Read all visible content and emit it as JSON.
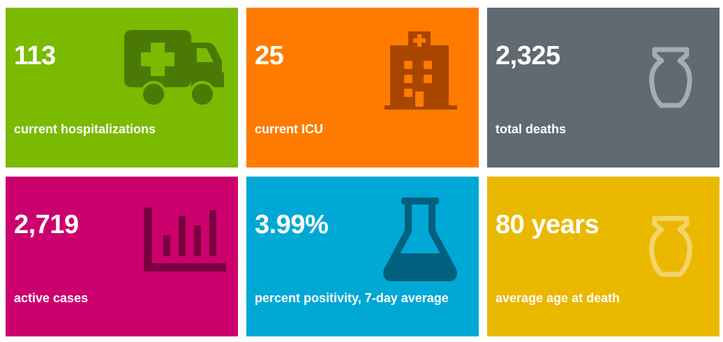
{
  "colors": {
    "hospitalizations": "#7aba00",
    "icu": "#ff7b00",
    "deaths": "#5f6a72",
    "active_cases": "#cc006d",
    "positivity": "#00a8d6",
    "age": "#ebb800"
  },
  "tiles": [
    {
      "value": "113",
      "label": "current hospitalizations",
      "icon": "ambulance-icon"
    },
    {
      "value": "25",
      "label": "current ICU",
      "icon": "hospital-icon"
    },
    {
      "value": "2,325",
      "label": "total deaths",
      "icon": "urn-icon"
    },
    {
      "value": "2,719",
      "label": "active cases",
      "icon": "bar-chart-icon"
    },
    {
      "value": "3.99%",
      "label": "percent positivity, 7-day average",
      "icon": "flask-icon"
    },
    {
      "value": "80 years",
      "label": "average age at death",
      "icon": "urn-icon"
    }
  ]
}
